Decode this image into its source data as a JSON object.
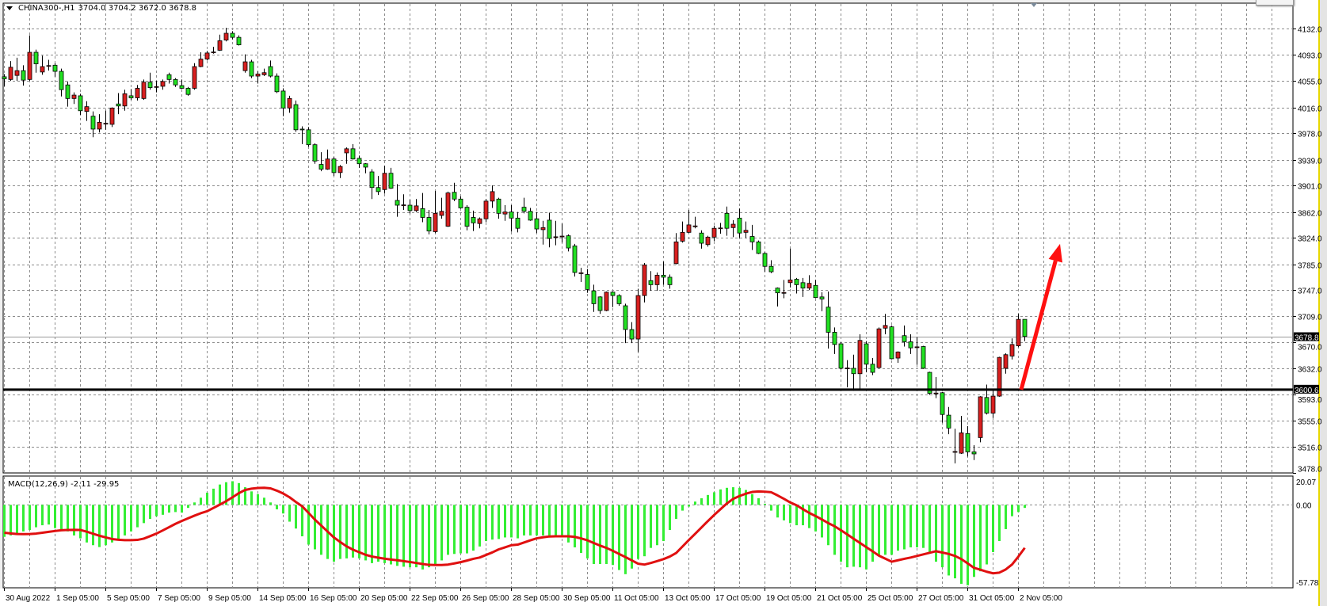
{
  "header": {
    "symbol_timeframe": "CHINA300-,H1",
    "ohlc": "3704.0 3704.2 3672.0 3678.8",
    "dropdown_icon": "triangle-down-icon"
  },
  "macd_label": "MACD(12,26,9) -2.11 -29.95",
  "colors": {
    "background": "#ffffff",
    "grid": "#8c8c8c",
    "bull_candle": "#d81f1f",
    "bear_candle": "#22e022",
    "macd_histogram": "#33ee33",
    "signal_line": "#e01010",
    "arrow": "#ff1010",
    "window_edge": "#e8d800"
  },
  "price_axis": {
    "labels": [
      "4132.0",
      "4093.0",
      "4055.0",
      "4016.0",
      "3978.0",
      "3939.0",
      "3901.0",
      "3862.0",
      "3824.0",
      "3785.0",
      "3747.0",
      "3709.0",
      "3670.0",
      "3632.0",
      "3593.0",
      "3555.0",
      "3516.0",
      "3478.0"
    ],
    "current_price": "3678.8",
    "support_level": "3600.6"
  },
  "macd_axis": {
    "labels": [
      "20.07",
      "0.00",
      "-57.78"
    ],
    "max": 20.07,
    "min": -57.78
  },
  "time_axis": [
    "30 Aug 2022",
    "1 Sep 05:00",
    "5 Sep 05:00",
    "7 Sep 05:00",
    "9 Sep 05:00",
    "14 Sep 05:00",
    "16 Sep 05:00",
    "20 Sep 05:00",
    "22 Sep 05:00",
    "26 Sep 05:00",
    "28 Sep 05:00",
    "30 Sep 05:00",
    "11 Oct 05:00",
    "13 Oct 05:00",
    "17 Oct 05:00",
    "19 Oct 05:00",
    "21 Oct 05:00",
    "25 Oct 05:00",
    "27 Oct 05:00",
    "31 Oct 05:00",
    "2 Nov 05:00"
  ],
  "chart_data": {
    "type": "candlestick",
    "symbol": "CHINA300-",
    "timeframe": "H1",
    "ylim": [
      3478,
      4169
    ],
    "grid": true,
    "candles_ohlc": [
      [
        4061,
        4065,
        4047,
        4058
      ],
      [
        4057,
        4084,
        4055,
        4075
      ],
      [
        4063,
        4089,
        4055,
        4070
      ],
      [
        4070,
        4078,
        4048,
        4056
      ],
      [
        4057,
        4122,
        4055,
        4097
      ],
      [
        4097,
        4101,
        4067,
        4080
      ],
      [
        4068,
        4092,
        4064,
        4076
      ],
      [
        4077,
        4086,
        4070,
        4077.5
      ],
      [
        4078,
        4081,
        4061,
        4069
      ],
      [
        4069,
        4073,
        4032,
        4042
      ],
      [
        4049,
        4054,
        4017,
        4029
      ],
      [
        4029,
        4038,
        4021,
        4034
      ],
      [
        4033,
        4036,
        4005,
        4011
      ],
      [
        4010,
        4025,
        3996,
        4017
      ],
      [
        4003,
        4010,
        3972,
        3984
      ],
      [
        3984,
        4006,
        3979,
        3994
      ],
      [
        3992,
        4011,
        3983,
        3992.5
      ],
      [
        3991,
        4016,
        3987,
        4015
      ],
      [
        4021,
        4037,
        4006,
        4018
      ],
      [
        4018,
        4042,
        4011,
        4036
      ],
      [
        4033,
        4043,
        4027,
        4030
      ],
      [
        4030,
        4049,
        4026,
        4044
      ],
      [
        4029,
        4057,
        4027,
        4053
      ],
      [
        4053,
        4067,
        4042,
        4045
      ],
      [
        4046,
        4055,
        4038,
        4046.5
      ],
      [
        4047,
        4057,
        4042,
        4054
      ],
      [
        4064,
        4067,
        4051,
        4057
      ],
      [
        4057,
        4059,
        4046,
        4049
      ],
      [
        4048,
        4057,
        4043,
        4044
      ],
      [
        4044,
        4046,
        4033,
        4035
      ],
      [
        4044,
        4081,
        4042,
        4076
      ],
      [
        4076,
        4097,
        4075,
        4087
      ],
      [
        4087,
        4099,
        4085,
        4096
      ],
      [
        4097,
        4105,
        4095,
        4097.5
      ],
      [
        4100,
        4123,
        4099,
        4114
      ],
      [
        4115,
        4133,
        4113,
        4125
      ],
      [
        4125,
        4128,
        4116,
        4119
      ],
      [
        4119,
        4122,
        4107,
        4108
      ],
      [
        4070,
        4094,
        4067,
        4083
      ],
      [
        4083,
        4086,
        4059,
        4062
      ],
      [
        4062,
        4069,
        4051,
        4065
      ],
      [
        4064,
        4073,
        4062,
        4067
      ],
      [
        4076,
        4085,
        4060,
        4062
      ],
      [
        4062,
        4066,
        4037,
        4039
      ],
      [
        4040,
        4044,
        4003,
        4015
      ],
      [
        4015,
        4033,
        4008,
        4029
      ],
      [
        4020,
        4026,
        3980,
        3983
      ],
      [
        3984,
        3988,
        3962,
        3983.5
      ],
      [
        3983,
        3987,
        3958,
        3961
      ],
      [
        3961,
        3963,
        3933,
        3937
      ],
      [
        3932,
        3950,
        3922,
        3925
      ],
      [
        3925,
        3954,
        3924,
        3940
      ],
      [
        3940,
        3943,
        3915,
        3920
      ],
      [
        3920,
        3931,
        3912,
        3929
      ],
      [
        3949,
        3957,
        3933,
        3955
      ],
      [
        3955,
        3962,
        3939,
        3940
      ],
      [
        3941,
        3945,
        3927,
        3933
      ],
      [
        3933,
        3934,
        3919,
        3928
      ],
      [
        3921,
        3925,
        3881,
        3898
      ],
      [
        3898,
        3915,
        3887,
        3892
      ],
      [
        3895,
        3930,
        3889,
        3919
      ],
      [
        3919,
        3927,
        3896,
        3897
      ],
      [
        3879,
        3903,
        3855,
        3872
      ],
      [
        3872,
        3888,
        3865,
        3872.5
      ],
      [
        3872,
        3880,
        3860,
        3864
      ],
      [
        3864,
        3881,
        3862,
        3871
      ],
      [
        3867,
        3890,
        3847,
        3854
      ],
      [
        3854,
        3865,
        3829,
        3834
      ],
      [
        3833,
        3893,
        3831,
        3860
      ],
      [
        3857,
        3883,
        3852,
        3863
      ],
      [
        3841,
        3892,
        3840,
        3890
      ],
      [
        3891,
        3905,
        3878,
        3881
      ],
      [
        3881,
        3885,
        3867,
        3868
      ],
      [
        3869,
        3872,
        3835,
        3841
      ],
      [
        3854,
        3864,
        3834,
        3846
      ],
      [
        3845,
        3854,
        3838,
        3852
      ],
      [
        3852,
        3881,
        3847,
        3878
      ],
      [
        3878,
        3901,
        3868,
        3892
      ],
      [
        3881,
        3883,
        3852,
        3860
      ],
      [
        3859,
        3872,
        3849,
        3862
      ],
      [
        3862,
        3872,
        3833,
        3853
      ],
      [
        3853,
        3862,
        3832,
        3838
      ],
      [
        3869,
        3883,
        3860,
        3863
      ],
      [
        3863,
        3868,
        3849,
        3850
      ],
      [
        3852,
        3862,
        3831,
        3837
      ],
      [
        3836,
        3849,
        3814,
        3839
      ],
      [
        3850,
        3861,
        3810,
        3823
      ],
      [
        3825,
        3849,
        3813,
        3825.5
      ],
      [
        3826,
        3845,
        3817,
        3826.5
      ],
      [
        3827,
        3829,
        3804,
        3809
      ],
      [
        3812,
        3815,
        3767,
        3773
      ],
      [
        3772,
        3780,
        3759,
        3772.5
      ],
      [
        3770,
        3778,
        3743,
        3748
      ],
      [
        3746,
        3755,
        3715,
        3727
      ],
      [
        3737,
        3738,
        3712,
        3717
      ],
      [
        3717,
        3745,
        3716,
        3744
      ],
      [
        3744,
        3745,
        3722,
        3739
      ],
      [
        3739,
        3741,
        3724,
        3727
      ],
      [
        3724,
        3727,
        3669,
        3689
      ],
      [
        3689,
        3700,
        3669,
        3675
      ],
      [
        3675,
        3749,
        3656,
        3739
      ],
      [
        3739,
        3787,
        3729,
        3784
      ],
      [
        3761,
        3775,
        3746,
        3755
      ],
      [
        3755,
        3773,
        3746,
        3769
      ],
      [
        3769,
        3789,
        3755,
        3766
      ],
      [
        3766,
        3770,
        3749,
        3755
      ],
      [
        3786,
        3831,
        3785,
        3818
      ],
      [
        3819,
        3848,
        3817,
        3832
      ],
      [
        3832,
        3865,
        3831,
        3843
      ],
      [
        3841,
        3855,
        3838,
        3841.5
      ],
      [
        3831,
        3835,
        3808,
        3816
      ],
      [
        3814,
        3827,
        3811,
        3825
      ],
      [
        3825,
        3842,
        3819,
        3838
      ],
      [
        3838,
        3846,
        3830,
        3838.5
      ],
      [
        3860,
        3870,
        3827,
        3838
      ],
      [
        3839,
        3850,
        3825,
        3844
      ],
      [
        3853,
        3867,
        3824,
        3831
      ],
      [
        3832,
        3848,
        3824,
        3835
      ],
      [
        3826,
        3843,
        3806,
        3818
      ],
      [
        3818,
        3820,
        3800,
        3801
      ],
      [
        3801,
        3803,
        3774,
        3782
      ],
      [
        3782,
        3791,
        3772,
        3774
      ],
      [
        3750,
        3751,
        3723,
        3743
      ],
      [
        3743,
        3762,
        3735,
        3743.5
      ],
      [
        3758,
        3808,
        3751,
        3762
      ],
      [
        3763,
        3765,
        3742,
        3755
      ],
      [
        3758,
        3765,
        3737,
        3750
      ],
      [
        3750,
        3769,
        3747,
        3757
      ],
      [
        3754,
        3762,
        3735,
        3736
      ],
      [
        3737,
        3744,
        3716,
        3734
      ],
      [
        3722,
        3745,
        3661,
        3685
      ],
      [
        3685,
        3692,
        3653,
        3667
      ],
      [
        3668,
        3670,
        3630,
        3632
      ],
      [
        3632,
        3644,
        3604,
        3632.5
      ],
      [
        3632,
        3652,
        3599,
        3624
      ],
      [
        3624,
        3682,
        3602,
        3673
      ],
      [
        3668,
        3672,
        3626,
        3638
      ],
      [
        3638,
        3647,
        3622,
        3626
      ],
      [
        3633,
        3692,
        3632,
        3690
      ],
      [
        3691,
        3712,
        3682,
        3695
      ],
      [
        3693,
        3695,
        3645,
        3646
      ],
      [
        3647,
        3657,
        3640,
        3656
      ],
      [
        3680,
        3695,
        3664,
        3671
      ],
      [
        3671,
        3682,
        3653,
        3662
      ],
      [
        3663,
        3678,
        3637,
        3663.5
      ],
      [
        3664,
        3665,
        3631,
        3632
      ],
      [
        3626,
        3627,
        3593,
        3595
      ],
      [
        3595,
        3619,
        3588,
        3595.5
      ],
      [
        3596,
        3597,
        3552,
        3564
      ],
      [
        3563,
        3575,
        3535,
        3544
      ],
      [
        3509,
        3543,
        3492,
        3509.5
      ],
      [
        3507,
        3562,
        3506,
        3537
      ],
      [
        3536,
        3547,
        3502,
        3509
      ],
      [
        3509,
        3519,
        3497,
        3506
      ],
      [
        3530,
        3591,
        3523,
        3590
      ],
      [
        3589,
        3608,
        3564,
        3566
      ],
      [
        3566,
        3600,
        3559,
        3591
      ],
      [
        3591,
        3649,
        3590,
        3648
      ],
      [
        3632,
        3654,
        3624,
        3652
      ],
      [
        3650,
        3676,
        3645,
        3667
      ],
      [
        3665,
        3712,
        3663,
        3704
      ],
      [
        3704,
        3704.2,
        3672,
        3678.8
      ]
    ],
    "horizontal_line": 3600.6,
    "current_price_line": 3678.8,
    "annotation": {
      "type": "arrow-up",
      "from_price": 3600.6,
      "to_price": 3815
    },
    "macd": {
      "params": "12,26,9",
      "main_histogram": [
        -22.3,
        -21.3,
        -20.4,
        -18.5,
        -17.5,
        -15.6,
        -14.2,
        -13.7,
        -16.2,
        -17.5,
        -18.5,
        -21.3,
        -23.3,
        -26.2,
        -28.1,
        -29.4,
        -28.1,
        -26.2,
        -24.2,
        -21.3,
        -18.5,
        -15.6,
        -12.7,
        -9.8,
        -7.9,
        -6.9,
        -5.4,
        -5.0,
        -5.4,
        -2.1,
        1.7,
        5.0,
        8.5,
        11.3,
        14.2,
        15.8,
        16.5,
        15.2,
        12.3,
        9.4,
        7.5,
        5.0,
        1.7,
        -3.1,
        -6.0,
        -11.7,
        -16.5,
        -21.9,
        -27.7,
        -31.0,
        -34.8,
        -37.7,
        -39.6,
        -37.7,
        -37.3,
        -36.7,
        -37.3,
        -38.7,
        -40.6,
        -39.6,
        -40.6,
        -41.5,
        -42.5,
        -43.1,
        -43.5,
        -43.5,
        -45.0,
        -43.5,
        -42.5,
        -38.7,
        -34.8,
        -34.2,
        -33.8,
        -33.8,
        -31.9,
        -29.0,
        -25.2,
        -24.2,
        -23.8,
        -22.7,
        -22.7,
        -23.3,
        -21.3,
        -21.3,
        -21.3,
        -21.3,
        -21.3,
        -21.3,
        -22.7,
        -26.2,
        -29.6,
        -33.5,
        -37.3,
        -41.2,
        -41.2,
        -41.2,
        -41.9,
        -45.4,
        -48.3,
        -44.4,
        -37.7,
        -35.8,
        -30.0,
        -28.1,
        -25.2,
        -17.5,
        -9.8,
        -4.0,
        -1.2,
        2.3,
        4.6,
        6.9,
        8.8,
        10.8,
        11.9,
        12.3,
        11.9,
        10.4,
        7.5,
        4.6,
        0.8,
        -4.0,
        -8.8,
        -10.8,
        -12.7,
        -14.2,
        -14.2,
        -16.2,
        -18.5,
        -22.7,
        -28.1,
        -34.8,
        -39.6,
        -43.5,
        -43.1,
        -43.5,
        -45.0,
        -39.6,
        -35.8,
        -34.8,
        -34.8,
        -31.9,
        -31.0,
        -29.6,
        -29.6,
        -30.0,
        -32.9,
        -39.6,
        -43.5,
        -49.2,
        -51.2,
        -55.0,
        -56.0,
        -50.2,
        -46.3,
        -41.5,
        -32.9,
        -25.2,
        -16.9,
        -7.9,
        -5.0,
        -2.11
      ],
      "signal_line": [
        -19.4,
        -19.9,
        -20.3,
        -20.4,
        -20.3,
        -20.0,
        -19.4,
        -18.8,
        -18.2,
        -17.7,
        -17.5,
        -17.4,
        -17.5,
        -18.7,
        -20.1,
        -21.5,
        -22.7,
        -23.8,
        -24.3,
        -24.6,
        -24.6,
        -24.4,
        -23.5,
        -21.8,
        -20.0,
        -17.8,
        -15.5,
        -13.2,
        -11.2,
        -9.3,
        -7.5,
        -5.8,
        -4.4,
        -2.1,
        0.2,
        2.6,
        5.3,
        8.2,
        10.4,
        11.3,
        11.8,
        11.9,
        11.5,
        9.9,
        7.9,
        5.3,
        2.0,
        -1.0,
        -5.6,
        -10.3,
        -14.4,
        -18.6,
        -22.7,
        -25.9,
        -28.9,
        -31.2,
        -33.0,
        -34.8,
        -36.0,
        -36.8,
        -37.5,
        -38.1,
        -38.6,
        -39.2,
        -39.8,
        -40.5,
        -41.2,
        -41.8,
        -41.9,
        -41.9,
        -41.6,
        -40.8,
        -39.9,
        -38.8,
        -37.6,
        -36.7,
        -34.9,
        -33.1,
        -31.0,
        -29.6,
        -28.1,
        -27.7,
        -26.2,
        -24.7,
        -23.3,
        -22.6,
        -22.0,
        -21.9,
        -21.9,
        -21.9,
        -22.3,
        -23.4,
        -24.7,
        -26.6,
        -28.4,
        -30.0,
        -32.0,
        -34.2,
        -36.4,
        -38.7,
        -41.0,
        -41.6,
        -40.5,
        -39.2,
        -37.8,
        -36.0,
        -33.5,
        -29.0,
        -24.5,
        -20.1,
        -15.7,
        -11.3,
        -7.0,
        -3.0,
        1.0,
        4.2,
        6.2,
        7.8,
        9.0,
        9.4,
        9.2,
        8.8,
        6.6,
        4.2,
        1.7,
        -0.3,
        -3.0,
        -5.6,
        -7.8,
        -10.2,
        -12.7,
        -14.9,
        -17.7,
        -20.6,
        -23.6,
        -26.5,
        -29.5,
        -32.4,
        -35.4,
        -37.5,
        -39.6,
        -38.6,
        -37.6,
        -36.7,
        -35.6,
        -34.5,
        -33.4,
        -32.3,
        -33.2,
        -34.2,
        -35.6,
        -37.8,
        -40.8,
        -43.9,
        -45.2,
        -46.6,
        -47.7,
        -47.2,
        -45.0,
        -41.5,
        -36.0,
        -29.95
      ]
    }
  }
}
